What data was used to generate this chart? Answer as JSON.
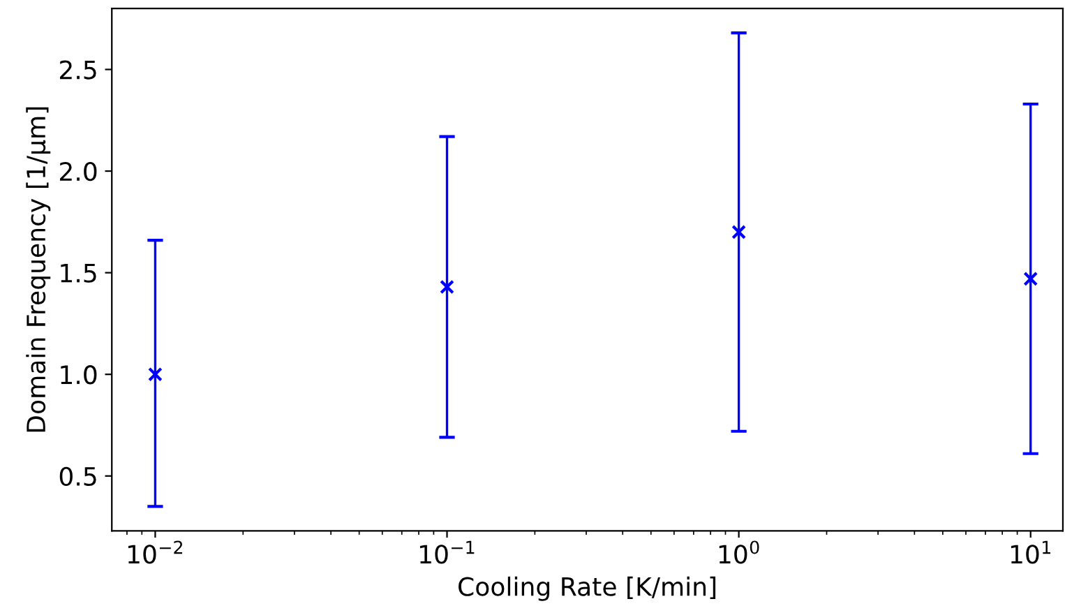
{
  "chart_data": {
    "type": "scatter",
    "xlabel": "Cooling Rate [K/min]",
    "ylabel": "Domain Frequency [1/μm]",
    "x": [
      0.01,
      0.1,
      1,
      10
    ],
    "series": [
      {
        "color": "#0000ff",
        "values": [
          1.0,
          1.43,
          1.7,
          1.47
        ],
        "errors": [
          [
            0.35,
            1.66
          ],
          [
            0.69,
            2.17
          ],
          [
            0.72,
            2.68
          ],
          [
            0.61,
            2.33
          ]
        ]
      }
    ],
    "log": "x",
    "marker": "cross",
    "xlim": [
      0.0071,
      12.9
    ],
    "ylim": [
      0.23,
      2.8
    ],
    "xticks": [
      {
        "value": 0.01,
        "label": "10$^{−2}$"
      },
      {
        "value": 0.1,
        "label": "10$^{−1}$"
      },
      {
        "value": 1,
        "label": "10$^{0}$"
      },
      {
        "value": 10,
        "label": "10$^{1}$"
      }
    ],
    "yticks": [
      0.5,
      {
        "value": 1,
        "label": "1.0"
      },
      1.5,
      {
        "value": 2,
        "label": "2.0"
      },
      2.5
    ],
    "grid": false,
    "legend": false
  }
}
